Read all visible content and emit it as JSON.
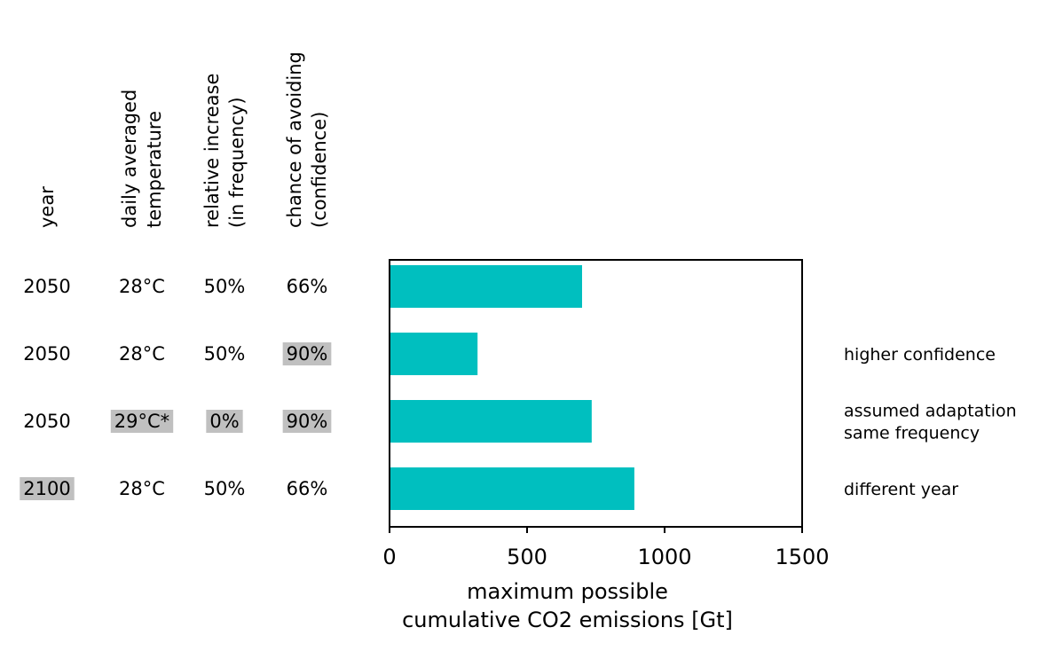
{
  "table": {
    "columns": [
      {
        "lines": [
          "year"
        ]
      },
      {
        "lines": [
          "daily averaged",
          "temperature"
        ]
      },
      {
        "lines": [
          "relative increase",
          "(in frequency)"
        ]
      },
      {
        "lines": [
          "chance of avoiding",
          "(confidence)"
        ]
      }
    ],
    "rows": [
      {
        "cells": [
          "2050",
          "28°C",
          "50%",
          "66%"
        ],
        "highlight": [
          false,
          false,
          false,
          false
        ]
      },
      {
        "cells": [
          "2050",
          "28°C",
          "50%",
          "90%"
        ],
        "highlight": [
          false,
          false,
          false,
          true
        ]
      },
      {
        "cells": [
          "2050",
          "29°C*",
          "0%",
          "90%"
        ],
        "highlight": [
          false,
          true,
          true,
          true
        ]
      },
      {
        "cells": [
          "2100",
          "28°C",
          "50%",
          "66%"
        ],
        "highlight": [
          true,
          false,
          false,
          false
        ]
      }
    ],
    "highlight_color": "#c0c0c0"
  },
  "chart_data": {
    "type": "bar",
    "orientation": "horizontal",
    "categories": [
      "2050 / 28°C / 50% / 66%",
      "2050 / 28°C / 50% / 90%",
      "2050 / 29°C* / 0% / 90%",
      "2100 / 28°C / 50% / 66%"
    ],
    "values": [
      700,
      320,
      735,
      890
    ],
    "bar_color": "#00bfbf",
    "xlim": [
      0,
      1500
    ],
    "xticks": [
      0,
      500,
      1000,
      1500
    ],
    "xtick_labels": [
      "0",
      "500",
      "1000",
      "1500"
    ],
    "xlabel_lines": [
      "maximum possible",
      "cumulative CO2 emissions [Gt]"
    ],
    "ylabel": "",
    "title": "",
    "grid": false
  },
  "annotations": [
    {
      "row": 1,
      "lines": [
        "higher confidence"
      ]
    },
    {
      "row": 2,
      "lines": [
        "assumed adaptation",
        "same frequency"
      ]
    },
    {
      "row": 3,
      "lines": [
        "different year"
      ]
    }
  ]
}
